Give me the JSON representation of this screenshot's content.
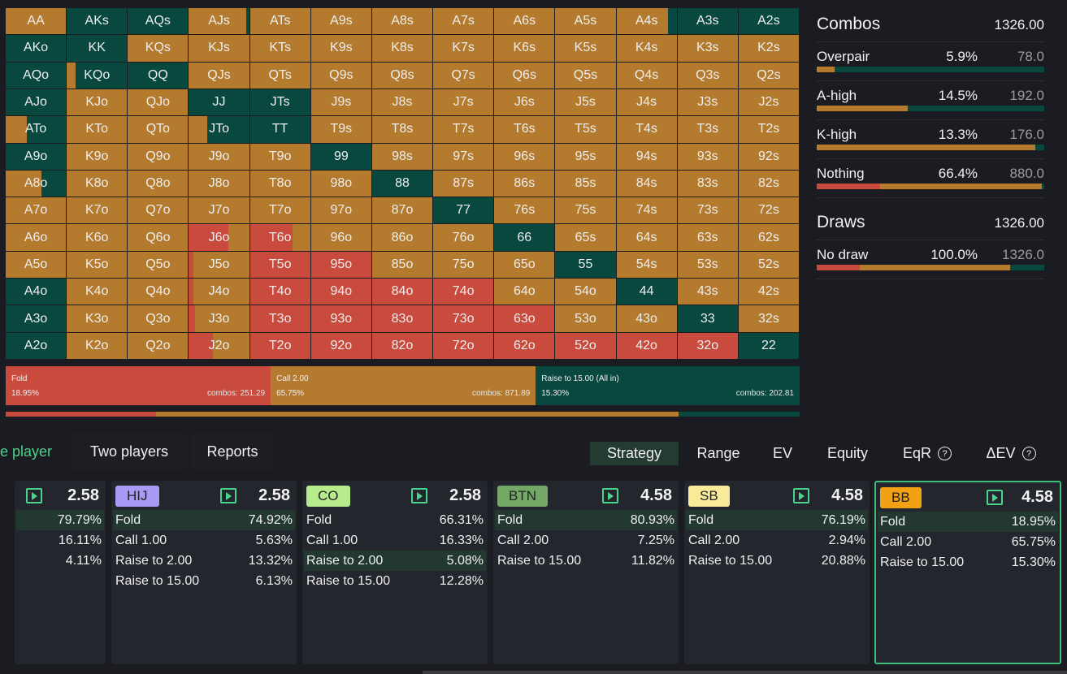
{
  "colors": {
    "fold": "#c84b3d",
    "call": "#b47a2e",
    "raise": "#08483f",
    "bg": "#1b1c21",
    "accent": "#4fd18b",
    "card": "#24262d"
  },
  "grid": {
    "cells": [
      [
        "AA",
        "AKs",
        "AQs",
        "AJs",
        "ATs",
        "A9s",
        "A8s",
        "A7s",
        "A6s",
        "A5s",
        "A4s",
        "A3s",
        "A2s"
      ],
      [
        "AKo",
        "KK",
        "KQs",
        "KJs",
        "KTs",
        "K9s",
        "K8s",
        "K7s",
        "K6s",
        "K5s",
        "K4s",
        "K3s",
        "K2s"
      ],
      [
        "AQo",
        "KQo",
        "QQ",
        "QJs",
        "QTs",
        "Q9s",
        "Q8s",
        "Q7s",
        "Q6s",
        "Q5s",
        "Q4s",
        "Q3s",
        "Q2s"
      ],
      [
        "AJo",
        "KJo",
        "QJo",
        "JJ",
        "JTs",
        "J9s",
        "J8s",
        "J7s",
        "J6s",
        "J5s",
        "J4s",
        "J3s",
        "J2s"
      ],
      [
        "ATo",
        "KTo",
        "QTo",
        "JTo",
        "TT",
        "T9s",
        "T8s",
        "T7s",
        "T6s",
        "T5s",
        "T4s",
        "T3s",
        "T2s"
      ],
      [
        "A9o",
        "K9o",
        "Q9o",
        "J9o",
        "T9o",
        "99",
        "98s",
        "97s",
        "96s",
        "95s",
        "94s",
        "93s",
        "92s"
      ],
      [
        "A8o",
        "K8o",
        "Q8o",
        "J8o",
        "T8o",
        "98o",
        "88",
        "87s",
        "86s",
        "85s",
        "84s",
        "83s",
        "82s"
      ],
      [
        "A7o",
        "K7o",
        "Q7o",
        "J7o",
        "T7o",
        "97o",
        "87o",
        "77",
        "76s",
        "75s",
        "74s",
        "73s",
        "72s"
      ],
      [
        "A6o",
        "K6o",
        "Q6o",
        "J6o",
        "T6o",
        "96o",
        "86o",
        "76o",
        "66",
        "65s",
        "64s",
        "63s",
        "62s"
      ],
      [
        "A5o",
        "K5o",
        "Q5o",
        "J5o",
        "T5o",
        "95o",
        "85o",
        "75o",
        "65o",
        "55",
        "54s",
        "53s",
        "52s"
      ],
      [
        "A4o",
        "K4o",
        "Q4o",
        "J4o",
        "T4o",
        "94o",
        "84o",
        "74o",
        "64o",
        "54o",
        "44",
        "43s",
        "42s"
      ],
      [
        "A3o",
        "K3o",
        "Q3o",
        "J3o",
        "T3o",
        "93o",
        "83o",
        "73o",
        "63o",
        "53o",
        "43o",
        "33",
        "32s"
      ],
      [
        "A2o",
        "K2o",
        "Q2o",
        "J2o",
        "T2o",
        "92o",
        "82o",
        "72o",
        "62o",
        "52o",
        "42o",
        "32o",
        "22"
      ]
    ],
    "mix": [
      [
        [
          0,
          1,
          0
        ],
        [
          0,
          0,
          1
        ],
        [
          0,
          0,
          1
        ],
        [
          0,
          0.95,
          0.05
        ],
        [
          0,
          1,
          0
        ],
        [
          0,
          1,
          0
        ],
        [
          0,
          1,
          0
        ],
        [
          0,
          1,
          0
        ],
        [
          0,
          1,
          0
        ],
        [
          0,
          1,
          0
        ],
        [
          0,
          0.85,
          0.15
        ],
        [
          0,
          0,
          1
        ],
        [
          0,
          0,
          1
        ]
      ],
      [
        [
          0,
          0,
          1
        ],
        [
          0,
          0,
          1
        ],
        [
          0,
          1,
          0
        ],
        [
          0,
          1,
          0
        ],
        [
          0,
          1,
          0
        ],
        [
          0,
          1,
          0
        ],
        [
          0,
          1,
          0
        ],
        [
          0,
          1,
          0
        ],
        [
          0,
          1,
          0
        ],
        [
          0,
          1,
          0
        ],
        [
          0,
          1,
          0
        ],
        [
          0,
          1,
          0
        ],
        [
          0,
          1,
          0
        ]
      ],
      [
        [
          0,
          0,
          1
        ],
        [
          0,
          0.15,
          0.85
        ],
        [
          0,
          0,
          1
        ],
        [
          0,
          1,
          0
        ],
        [
          0,
          1,
          0
        ],
        [
          0,
          1,
          0
        ],
        [
          0,
          1,
          0
        ],
        [
          0,
          1,
          0
        ],
        [
          0,
          1,
          0
        ],
        [
          0,
          1,
          0
        ],
        [
          0,
          1,
          0
        ],
        [
          0,
          1,
          0
        ],
        [
          0,
          1,
          0
        ]
      ],
      [
        [
          0,
          0,
          1
        ],
        [
          0,
          1,
          0
        ],
        [
          0,
          1,
          0
        ],
        [
          0,
          0,
          1
        ],
        [
          0,
          0,
          1
        ],
        [
          0,
          1,
          0
        ],
        [
          0,
          1,
          0
        ],
        [
          0,
          1,
          0
        ],
        [
          0,
          1,
          0
        ],
        [
          0,
          1,
          0
        ],
        [
          0,
          1,
          0
        ],
        [
          0,
          1,
          0
        ],
        [
          0,
          1,
          0
        ]
      ],
      [
        [
          0,
          0.35,
          0.65
        ],
        [
          0,
          1,
          0
        ],
        [
          0,
          1,
          0
        ],
        [
          0,
          0.3,
          0.7
        ],
        [
          0,
          0,
          1
        ],
        [
          0,
          1,
          0
        ],
        [
          0,
          1,
          0
        ],
        [
          0,
          1,
          0
        ],
        [
          0,
          1,
          0
        ],
        [
          0,
          1,
          0
        ],
        [
          0,
          1,
          0
        ],
        [
          0,
          1,
          0
        ],
        [
          0,
          1,
          0
        ]
      ],
      [
        [
          0,
          0,
          1
        ],
        [
          0,
          1,
          0
        ],
        [
          0,
          1,
          0
        ],
        [
          0,
          1,
          0
        ],
        [
          0,
          1,
          0
        ],
        [
          0,
          0,
          1
        ],
        [
          0,
          1,
          0
        ],
        [
          0,
          1,
          0
        ],
        [
          0,
          1,
          0
        ],
        [
          0,
          1,
          0
        ],
        [
          0,
          1,
          0
        ],
        [
          0,
          1,
          0
        ],
        [
          0,
          1,
          0
        ]
      ],
      [
        [
          0,
          0.6,
          0.4
        ],
        [
          0,
          1,
          0
        ],
        [
          0,
          1,
          0
        ],
        [
          0,
          1,
          0
        ],
        [
          0,
          1,
          0
        ],
        [
          0,
          1,
          0
        ],
        [
          0,
          0,
          1
        ],
        [
          0,
          1,
          0
        ],
        [
          0,
          1,
          0
        ],
        [
          0,
          1,
          0
        ],
        [
          0,
          1,
          0
        ],
        [
          0,
          1,
          0
        ],
        [
          0,
          1,
          0
        ]
      ],
      [
        [
          0,
          1,
          0
        ],
        [
          0,
          1,
          0
        ],
        [
          0,
          1,
          0
        ],
        [
          0,
          1,
          0
        ],
        [
          0,
          1,
          0
        ],
        [
          0,
          1,
          0
        ],
        [
          0,
          1,
          0
        ],
        [
          0,
          0,
          1
        ],
        [
          0,
          1,
          0
        ],
        [
          0,
          1,
          0
        ],
        [
          0,
          1,
          0
        ],
        [
          0,
          1,
          0
        ],
        [
          0,
          1,
          0
        ]
      ],
      [
        [
          0,
          1,
          0
        ],
        [
          0,
          1,
          0
        ],
        [
          0,
          1,
          0
        ],
        [
          0.65,
          0.35,
          0
        ],
        [
          0.7,
          0.3,
          0
        ],
        [
          0,
          1,
          0
        ],
        [
          0,
          1,
          0
        ],
        [
          0,
          1,
          0
        ],
        [
          0,
          0,
          1
        ],
        [
          0,
          1,
          0
        ],
        [
          0,
          1,
          0
        ],
        [
          0,
          1,
          0
        ],
        [
          0,
          1,
          0
        ]
      ],
      [
        [
          0,
          1,
          0
        ],
        [
          0,
          1,
          0
        ],
        [
          0,
          1,
          0
        ],
        [
          0.08,
          0.92,
          0
        ],
        [
          1,
          0,
          0
        ],
        [
          1,
          0,
          0
        ],
        [
          0,
          1,
          0
        ],
        [
          0,
          1,
          0
        ],
        [
          0,
          1,
          0
        ],
        [
          0,
          0,
          1
        ],
        [
          0,
          1,
          0
        ],
        [
          0,
          1,
          0
        ],
        [
          0,
          1,
          0
        ]
      ],
      [
        [
          0,
          0,
          1
        ],
        [
          0,
          1,
          0
        ],
        [
          0,
          1,
          0
        ],
        [
          0.08,
          0.92,
          0
        ],
        [
          1,
          0,
          0
        ],
        [
          1,
          0,
          0
        ],
        [
          1,
          0,
          0
        ],
        [
          1,
          0,
          0
        ],
        [
          0,
          1,
          0
        ],
        [
          0,
          1,
          0
        ],
        [
          0,
          0,
          1
        ],
        [
          0,
          1,
          0
        ],
        [
          0,
          1,
          0
        ]
      ],
      [
        [
          0,
          0,
          1
        ],
        [
          0,
          1,
          0
        ],
        [
          0,
          1,
          0
        ],
        [
          0.1,
          0.9,
          0
        ],
        [
          1,
          0,
          0
        ],
        [
          1,
          0,
          0
        ],
        [
          1,
          0,
          0
        ],
        [
          1,
          0,
          0
        ],
        [
          1,
          0,
          0
        ],
        [
          0,
          1,
          0
        ],
        [
          0,
          1,
          0
        ],
        [
          0,
          0,
          1
        ],
        [
          0,
          1,
          0
        ]
      ],
      [
        [
          0,
          0,
          1
        ],
        [
          0,
          1,
          0
        ],
        [
          0,
          1,
          0
        ],
        [
          0.4,
          0.6,
          0
        ],
        [
          1,
          0,
          0
        ],
        [
          1,
          0,
          0
        ],
        [
          1,
          0,
          0
        ],
        [
          1,
          0,
          0
        ],
        [
          1,
          0,
          0
        ],
        [
          1,
          0,
          0
        ],
        [
          1,
          0,
          0
        ],
        [
          1,
          0,
          0
        ],
        [
          0,
          0,
          1
        ]
      ]
    ]
  },
  "actions": [
    {
      "name": "Fold",
      "pct": "18.95%",
      "combos": "combos: 251.29",
      "frac": 0.3338,
      "kind": "fold"
    },
    {
      "name": "Call 2.00",
      "pct": "65.75%",
      "combos": "combos: 871.89",
      "frac": 0.3338,
      "kind": "call"
    },
    {
      "name": "Raise to 15.00 (All in)",
      "pct": "15.30%",
      "combos": "combos: 202.81",
      "frac": 0.3324,
      "kind": "raise"
    }
  ],
  "freqbar": [
    0.1895,
    0.6575,
    0.153
  ],
  "panel": {
    "combos": {
      "title": "Combos",
      "total": "1326.00",
      "rows": [
        {
          "name": "Overpair",
          "pct": "5.9%",
          "count": "78.0",
          "bar": [
            0,
            0.08,
            0.92
          ]
        },
        {
          "name": "A-high",
          "pct": "14.5%",
          "count": "192.0",
          "bar": [
            0,
            0.4,
            0.6
          ]
        },
        {
          "name": "K-high",
          "pct": "13.3%",
          "count": "176.0",
          "bar": [
            0,
            0.96,
            0.04
          ]
        },
        {
          "name": "Nothing",
          "pct": "66.4%",
          "count": "880.0",
          "bar": [
            0.28,
            0.71,
            0.01
          ]
        }
      ]
    },
    "draws": {
      "title": "Draws",
      "total": "1326.00",
      "rows": [
        {
          "name": "No draw",
          "pct": "100.0%",
          "count": "1326.0",
          "bar": [
            0.19,
            0.66,
            0.15
          ]
        }
      ]
    }
  },
  "tabs": {
    "one_player": "e player",
    "two_players": "Two players",
    "reports": "Reports"
  },
  "view_tabs": {
    "strategy": "Strategy",
    "range": "Range",
    "ev": "EV",
    "equity": "Equity",
    "eqr": "EqR",
    "dev": "ΔEV",
    "help_glyph": "?"
  },
  "cards": [
    {
      "pos": "",
      "stack": "2.58",
      "rows": [
        [
          "",
          "79.79%"
        ],
        [
          "",
          "16.11%"
        ],
        [
          "",
          "4.11%"
        ]
      ],
      "hl": 0
    },
    {
      "pos": "HIJ",
      "stack": "2.58",
      "rows": [
        [
          "Fold",
          "74.92%"
        ],
        [
          "Call 1.00",
          "5.63%"
        ],
        [
          "Raise to 2.00",
          "13.32%"
        ],
        [
          "Raise to 15.00",
          "6.13%"
        ]
      ],
      "hl": 0,
      "color": "#a79bf5"
    },
    {
      "pos": "CO",
      "stack": "2.58",
      "rows": [
        [
          "Fold",
          "66.31%"
        ],
        [
          "Call 1.00",
          "16.33%"
        ],
        [
          "Raise to 2.00",
          "5.08%"
        ],
        [
          "Raise to 15.00",
          "12.28%"
        ]
      ],
      "hl": 2,
      "color": "#b6ec8c"
    },
    {
      "pos": "BTN",
      "stack": "4.58",
      "rows": [
        [
          "Fold",
          "80.93%"
        ],
        [
          "Call 2.00",
          "7.25%"
        ],
        [
          "Raise to 15.00",
          "11.82%"
        ]
      ],
      "hl": 0,
      "color": "#74a866"
    },
    {
      "pos": "SB",
      "stack": "4.58",
      "rows": [
        [
          "Fold",
          "76.19%"
        ],
        [
          "Call 2.00",
          "2.94%"
        ],
        [
          "Raise to 15.00",
          "20.88%"
        ]
      ],
      "hl": 0,
      "color": "#f7eb9a"
    },
    {
      "pos": "BB",
      "stack": "4.58",
      "rows": [
        [
          "Fold",
          "18.95%"
        ],
        [
          "Call 2.00",
          "65.75%"
        ],
        [
          "Raise to 15.00",
          "15.30%"
        ]
      ],
      "hl": 0,
      "color": "#f2a114",
      "selected": true
    }
  ]
}
